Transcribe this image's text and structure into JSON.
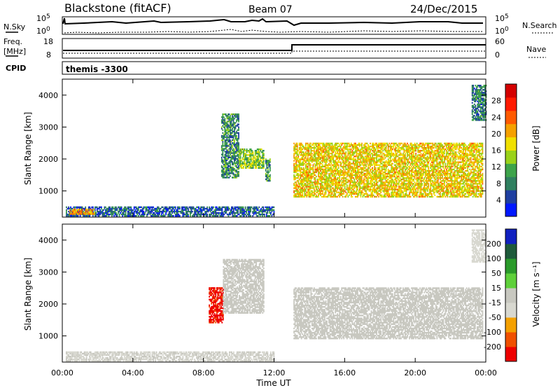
{
  "header": {
    "station": "Blackstone (fitACF)",
    "beam": "Beam 07",
    "date": "24/Dec/2015"
  },
  "top_panels": {
    "nsky_label": "N.Sky",
    "nsky_ticks": [
      "10^5",
      "10^0"
    ],
    "nsearch_label": "N.Search",
    "nsearch_ticks": [
      "10^5",
      "10^0"
    ],
    "freq_label": "Freq.",
    "freq_unit": "[MHz]",
    "freq_ticks": [
      "18",
      "8"
    ],
    "nave_label": "Nave",
    "nave_ticks": [
      "60",
      "0"
    ],
    "cpid_label": "CPID",
    "cpid_value": "themis -3300"
  },
  "chart_data": [
    {
      "type": "heatmap",
      "title": "Power",
      "xlabel": "",
      "ylabel": "Slant Range [km]",
      "xlim_hours": [
        0,
        24
      ],
      "ylim": [
        180,
        4500
      ],
      "yticks": [
        "1000",
        "2000",
        "3000",
        "4000"
      ],
      "colorbar": {
        "label": "Power [dB]",
        "ticks": [
          "28",
          "24",
          "20",
          "16",
          "12",
          "8",
          "4"
        ],
        "range": [
          0,
          32
        ],
        "colors": [
          "#0018ff",
          "#1f3fa0",
          "#2f7f5f",
          "#3da34a",
          "#9ad21a",
          "#f0e000",
          "#f5a000",
          "#ff5a00",
          "#ff1a00",
          "#d40000"
        ]
      },
      "regions": [
        {
          "t0": 0.2,
          "t1": 12.0,
          "r0": 200,
          "r1": 500,
          "level": 6
        },
        {
          "t0": 0.4,
          "t1": 1.8,
          "r0": 260,
          "r1": 420,
          "level": 20
        },
        {
          "t0": 9.0,
          "t1": 10.0,
          "r0": 1400,
          "r1": 3400,
          "level": 9
        },
        {
          "t0": 10.0,
          "t1": 11.4,
          "r0": 1700,
          "r1": 2300,
          "level": 14
        },
        {
          "t0": 11.5,
          "t1": 11.8,
          "r0": 1300,
          "r1": 2000,
          "level": 10
        },
        {
          "t0": 13.1,
          "t1": 23.8,
          "r0": 800,
          "r1": 2500,
          "level": 18
        },
        {
          "t0": 23.2,
          "t1": 24.0,
          "r0": 3200,
          "r1": 4300,
          "level": 8
        }
      ]
    },
    {
      "type": "heatmap",
      "title": "Velocity",
      "xlabel": "Time UT",
      "ylabel": "Slant Range [km]",
      "xlim_hours": [
        0,
        24
      ],
      "ylim": [
        180,
        4500
      ],
      "xticks": [
        "00:00",
        "04:00",
        "08:00",
        "12:00",
        "16:00",
        "20:00",
        "00:00"
      ],
      "yticks": [
        "1000",
        "2000",
        "3000",
        "4000"
      ],
      "colorbar": {
        "label": "Velocity [m s⁻¹]",
        "ticks": [
          "200",
          "100",
          "50",
          "15",
          "-15",
          "-50",
          "-100",
          "-200"
        ],
        "range": [
          -250,
          250
        ],
        "colors": [
          "#ee0000",
          "#f05000",
          "#f4a000",
          "#d8d8d0",
          "#c8c8c0",
          "#5ed03a",
          "#2a9a2a",
          "#1e5a3a",
          "#1020c0"
        ]
      },
      "regions": [
        {
          "t0": 0.2,
          "t1": 12.0,
          "r0": 200,
          "r1": 500,
          "level": -30
        },
        {
          "t0": 8.3,
          "t1": 9.1,
          "r0": 1400,
          "r1": 2500,
          "level": -200
        },
        {
          "t0": 9.1,
          "t1": 11.4,
          "r0": 1700,
          "r1": 3400,
          "level": 0
        },
        {
          "t0": 13.1,
          "t1": 23.8,
          "r0": 900,
          "r1": 2500,
          "level": 0
        },
        {
          "t0": 23.2,
          "t1": 24.0,
          "r0": 3300,
          "r1": 4300,
          "level": -40
        }
      ]
    }
  ]
}
